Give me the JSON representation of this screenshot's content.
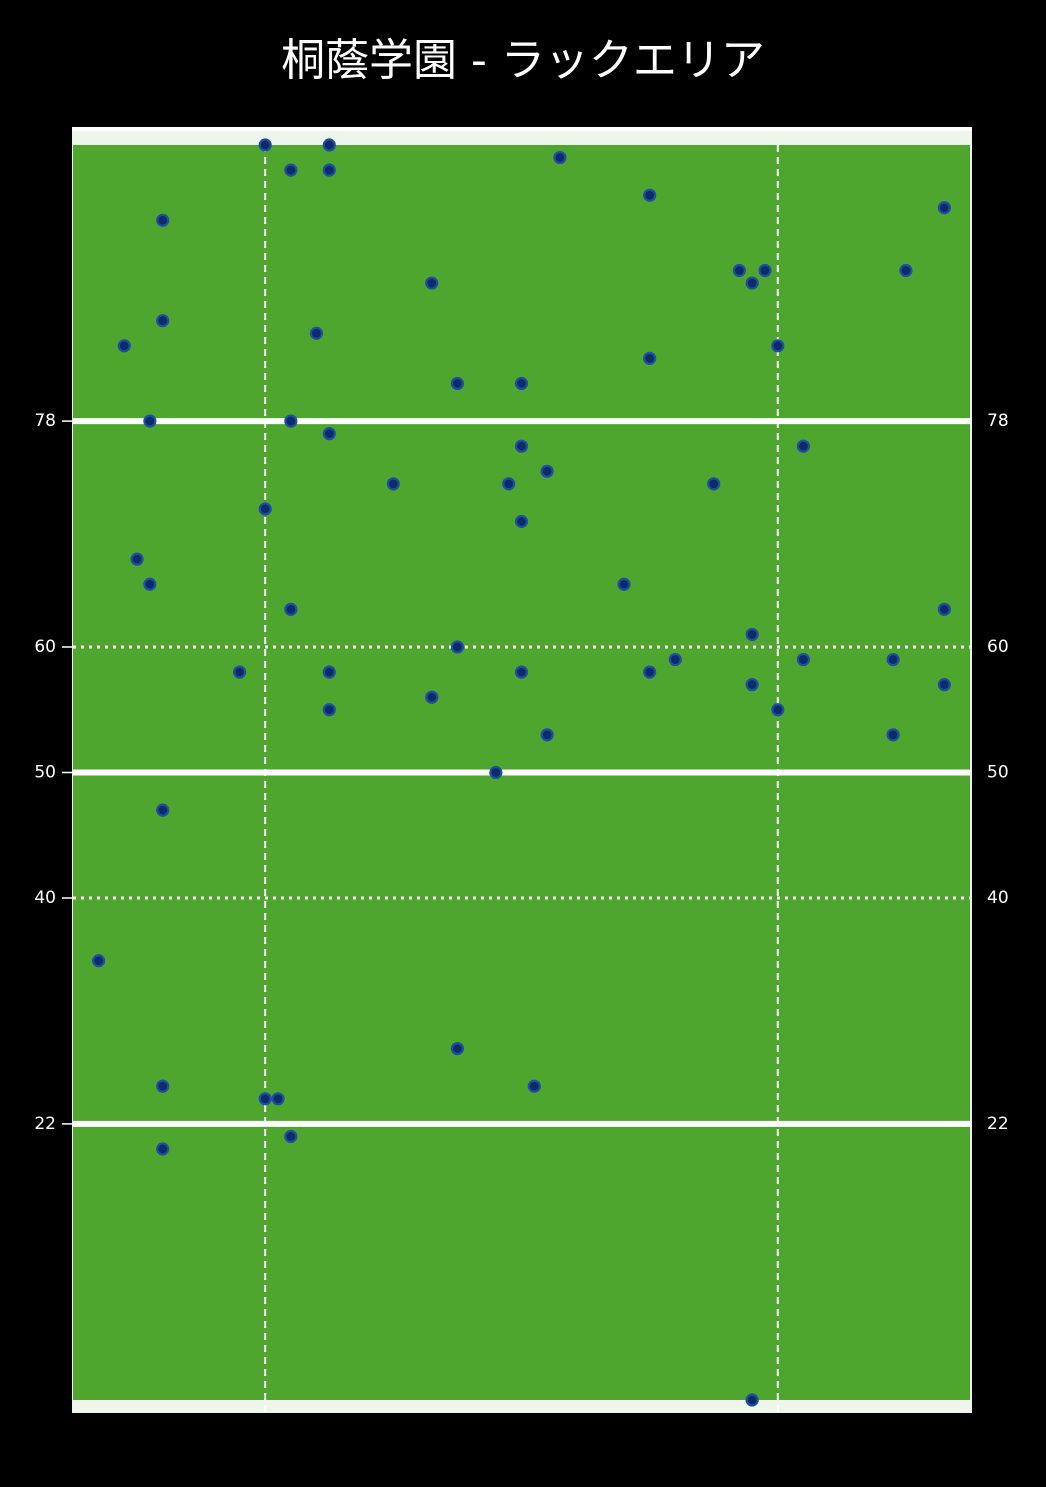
{
  "chart_data": {
    "type": "scatter",
    "title": "桐蔭学園 - ラックエリア",
    "xlim": [
      0,
      70
    ],
    "ylim": [
      0,
      100
    ],
    "yticks": [
      22,
      40,
      50,
      60,
      78
    ],
    "ytick_styles": [
      "solid",
      "dotted",
      "solid",
      "dotted",
      "solid"
    ],
    "xlines": [
      15,
      55
    ],
    "xline_style": "dashed",
    "field_color": "#4fa62f",
    "color": "#0d2a6b",
    "edge_color": "#1f4fa0",
    "x": [
      15,
      17,
      20,
      20,
      38,
      45,
      68,
      7,
      52,
      54,
      53,
      65,
      28,
      7,
      19,
      4,
      55,
      45,
      30,
      35,
      6,
      17,
      20,
      35,
      57,
      37,
      25,
      34,
      50,
      15,
      35,
      5,
      6,
      43,
      17,
      68,
      53,
      30,
      47,
      57,
      64,
      13,
      20,
      35,
      45,
      53,
      68,
      28,
      20,
      55,
      37,
      64,
      33,
      7,
      2,
      30,
      7,
      36,
      15,
      16,
      17,
      7,
      53
    ],
    "values": [
      100,
      98,
      100,
      98,
      99,
      96,
      95,
      94,
      90,
      90,
      89,
      90,
      89,
      86,
      85,
      84,
      84,
      83,
      81,
      81,
      78,
      78,
      77,
      76,
      76,
      74,
      73,
      73,
      73,
      71,
      70,
      67,
      65,
      65,
      63,
      63,
      61,
      60,
      59,
      59,
      59,
      58,
      58,
      58,
      58,
      57,
      57,
      56,
      55,
      55,
      53,
      53,
      50,
      47,
      35,
      28,
      25,
      25,
      24,
      24,
      21,
      20,
      0
    ]
  }
}
